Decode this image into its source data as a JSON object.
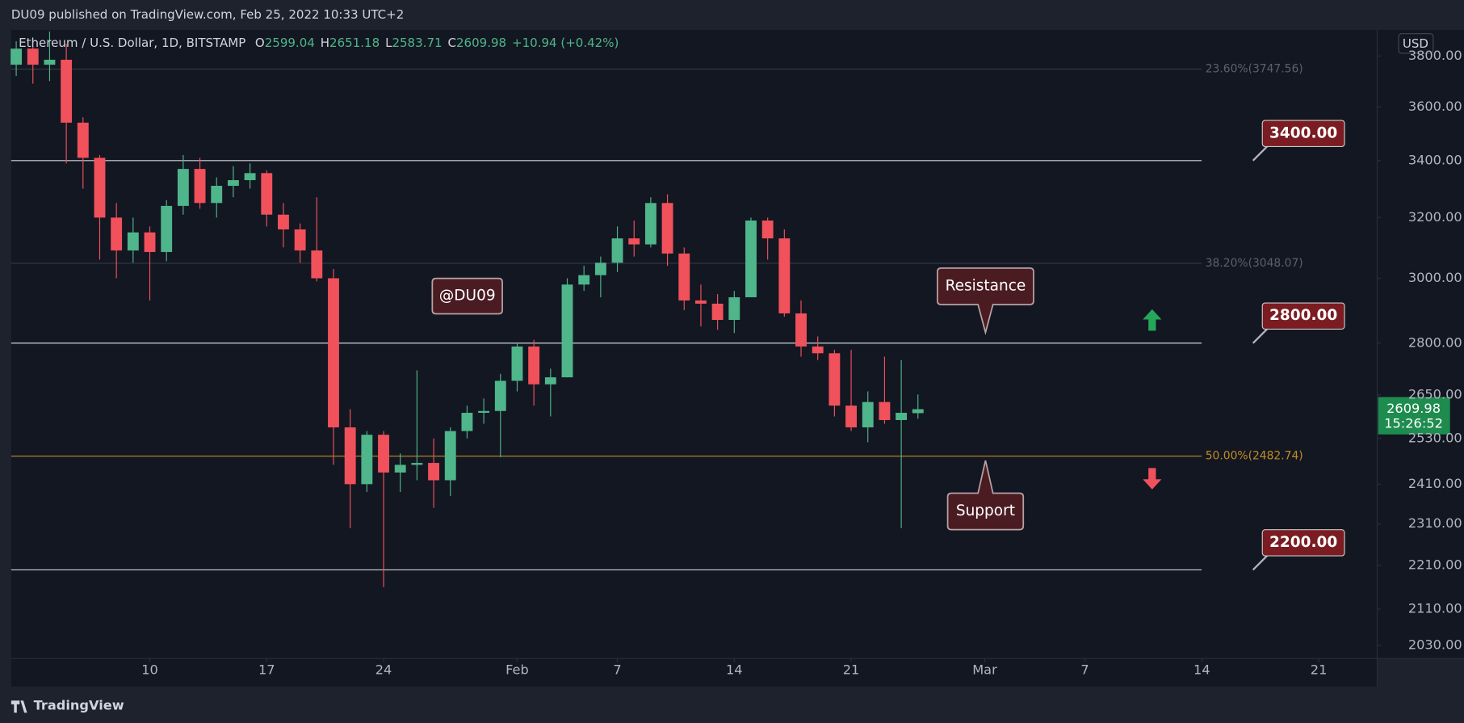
{
  "header": {
    "text": "DU09 published on TradingView.com, Feb 25, 2022 10:33 UTC+2"
  },
  "footer": {
    "brand": "TradingView"
  },
  "chart_data": {
    "type": "candlestick",
    "title": "Ethereum / U.S. Dollar, 1D, BITSTAMP",
    "ohlc_prefixes": [
      "O",
      "H",
      "L",
      "C"
    ],
    "change": "+10.94 (+0.42%)",
    "currency": "USD",
    "countdown": "15:26:52",
    "log_scale": true,
    "x": [
      2,
      3,
      4,
      5,
      6,
      7,
      8,
      9,
      10,
      11,
      12,
      13,
      14,
      15,
      16,
      17,
      18,
      19,
      20,
      21,
      22,
      23,
      24,
      25,
      26,
      27,
      28,
      29,
      30,
      31,
      32,
      33,
      34,
      35,
      36,
      37,
      38,
      39,
      40,
      41,
      42,
      43,
      44,
      45,
      46,
      47,
      48,
      49,
      50,
      51,
      52,
      53,
      54,
      55,
      56
    ],
    "series": [
      {
        "up_color": "#4fb58a",
        "down_color": "#f0515b",
        "open": [
          3765,
          3830,
          3765,
          3785,
          3540,
          3410,
          3200,
          3090,
          3150,
          3085,
          3240,
          3370,
          3250,
          3310,
          3330,
          3355,
          3210,
          3160,
          3090,
          3000,
          2560,
          2410,
          2540,
          2440,
          2460,
          2465,
          2420,
          2550,
          2600,
          2605,
          2690,
          2790,
          2680,
          2700,
          2980,
          3010,
          3050,
          3130,
          3110,
          3250,
          3080,
          2930,
          2920,
          2870,
          2940,
          3190,
          3130,
          2890,
          2790,
          2770,
          2620,
          2560,
          2630,
          2580,
          2599.04
        ],
        "high": [
          3860,
          3840,
          3900,
          3850,
          3560,
          3420,
          3250,
          3200,
          3170,
          3260,
          3420,
          3410,
          3340,
          3380,
          3390,
          3365,
          3250,
          3180,
          3270,
          3030,
          2610,
          2550,
          2550,
          2490,
          2720,
          2530,
          2560,
          2620,
          2640,
          2710,
          2800,
          2810,
          2725,
          3000,
          3040,
          3070,
          3170,
          3190,
          3270,
          3280,
          3100,
          2980,
          2950,
          2960,
          3200,
          3200,
          3160,
          2930,
          2820,
          2780,
          2780,
          2660,
          2760,
          2750,
          2651.18
        ],
        "low": [
          3720,
          3690,
          3700,
          3390,
          3300,
          3060,
          3000,
          3050,
          2930,
          3055,
          3210,
          3230,
          3200,
          3270,
          3300,
          3170,
          3100,
          3050,
          2990,
          2460,
          2300,
          2390,
          2160,
          2390,
          2420,
          2350,
          2380,
          2530,
          2570,
          2480,
          2660,
          2620,
          2590,
          2700,
          2960,
          2940,
          3020,
          3070,
          3100,
          3040,
          2900,
          2850,
          2840,
          2830,
          2940,
          3060,
          2880,
          2760,
          2750,
          2590,
          2550,
          2520,
          2570,
          2300,
          2583.71
        ],
        "close": [
          3830,
          3765,
          3785,
          3540,
          3410,
          3200,
          3090,
          3150,
          3085,
          3240,
          3370,
          3250,
          3310,
          3330,
          3355,
          3210,
          3160,
          3090,
          3000,
          2560,
          2410,
          2540,
          2440,
          2460,
          2465,
          2420,
          2550,
          2600,
          2605,
          2690,
          2790,
          2680,
          2700,
          2980,
          3010,
          3050,
          3130,
          3110,
          3250,
          3080,
          2930,
          2920,
          2870,
          2940,
          3190,
          3130,
          2890,
          2790,
          2770,
          2620,
          2560,
          2630,
          2580,
          2600,
          2609.98
        ]
      }
    ],
    "xlim": [
      1.7,
      83.5
    ],
    "xticks": [
      {
        "value": 10,
        "label": "10"
      },
      {
        "value": 17,
        "label": "17"
      },
      {
        "value": 24,
        "label": "24"
      },
      {
        "value": 32,
        "label": "Feb"
      },
      {
        "value": 38,
        "label": "7"
      },
      {
        "value": 45,
        "label": "14"
      },
      {
        "value": 52,
        "label": "21"
      },
      {
        "value": 60,
        "label": "Mar"
      },
      {
        "value": 66,
        "label": "7"
      },
      {
        "value": 73,
        "label": "14"
      },
      {
        "value": 80,
        "label": "21"
      }
    ],
    "ylim": [
      2002,
      3907
    ],
    "yticks": [
      {
        "value": 3800,
        "label": "3800.00"
      },
      {
        "value": 3600,
        "label": "3600.00"
      },
      {
        "value": 3400,
        "label": "3400.00"
      },
      {
        "value": 3200,
        "label": "3200.00"
      },
      {
        "value": 3000,
        "label": "3000.00"
      },
      {
        "value": 2800,
        "label": "2800.00"
      },
      {
        "value": 2650,
        "label": "2650.00"
      },
      {
        "value": 2530,
        "label": "2530.00"
      },
      {
        "value": 2410,
        "label": "2410.00"
      },
      {
        "value": 2310,
        "label": "2310.00"
      },
      {
        "value": 2210,
        "label": "2210.00"
      },
      {
        "value": 2110,
        "label": "2110.00"
      },
      {
        "value": 2030,
        "label": "2030.00"
      }
    ],
    "hlines": [
      {
        "value": 3400,
        "label": "3400.00"
      },
      {
        "value": 2800,
        "label": "2800.00"
      },
      {
        "value": 2200,
        "label": "2200.00"
      }
    ],
    "fib_levels": [
      {
        "value": 3747.56,
        "label": "23.60%(3747.56)",
        "color": "#363a45"
      },
      {
        "value": 3048.07,
        "label": "38.20%(3048.07)",
        "color": "#363a45"
      },
      {
        "value": 2482.74,
        "label": "50.00%(2482.74)",
        "color": "#c28b24"
      }
    ],
    "annotations": [
      "@DU09",
      "Resistance",
      "Support"
    ]
  }
}
